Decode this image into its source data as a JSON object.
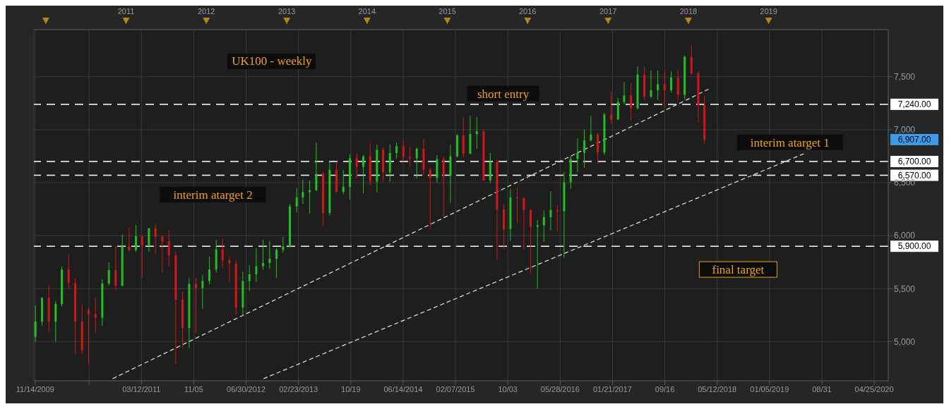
{
  "chart_data": {
    "type": "candlestick",
    "title": "UK100 - weekly",
    "annotations": [
      "short entry",
      "interim atarget 2",
      "interim atarget 1",
      "final target",
      "6,907.00"
    ],
    "x": [
      "2009-11-15",
      "2009-12-15",
      "2010-01-15",
      "2010-02-15",
      "2010-03-15",
      "2010-04-15",
      "2010-05-15",
      "2010-06-15",
      "2010-07-15",
      "2010-08-15",
      "2010-09-15",
      "2010-10-15",
      "2010-11-15",
      "2010-12-15",
      "2011-01-15",
      "2011-02-15",
      "2011-03-15",
      "2011-04-15",
      "2011-05-15",
      "2011-06-15",
      "2011-07-15",
      "2011-08-15",
      "2011-09-15",
      "2011-10-15",
      "2011-11-15",
      "2011-12-15",
      "2012-01-15",
      "2012-02-15",
      "2012-03-15",
      "2012-04-15",
      "2012-05-15",
      "2012-06-15",
      "2012-07-15",
      "2012-08-15",
      "2012-09-15",
      "2012-10-15",
      "2012-11-15",
      "2012-12-15",
      "2013-01-15",
      "2013-02-15",
      "2013-03-15",
      "2013-04-15",
      "2013-05-15",
      "2013-06-15",
      "2013-07-15",
      "2013-08-15",
      "2013-09-15",
      "2013-10-15",
      "2013-11-15",
      "2013-12-15",
      "2014-01-15",
      "2014-02-15",
      "2014-03-15",
      "2014-04-15",
      "2014-05-15",
      "2014-06-15",
      "2014-07-15",
      "2014-08-15",
      "2014-09-15",
      "2014-10-15",
      "2014-11-15",
      "2014-12-15",
      "2015-01-15",
      "2015-02-15",
      "2015-03-15",
      "2015-04-15",
      "2015-05-15",
      "2015-06-15",
      "2015-07-15",
      "2015-08-15",
      "2015-09-15",
      "2015-10-15",
      "2015-11-15",
      "2015-12-15",
      "2016-01-15",
      "2016-02-15",
      "2016-03-15",
      "2016-04-15",
      "2016-05-15",
      "2016-06-15",
      "2016-07-15",
      "2016-08-15",
      "2016-09-15",
      "2016-10-15",
      "2016-11-15",
      "2016-12-15",
      "2017-01-15",
      "2017-02-15",
      "2017-03-15",
      "2017-04-15",
      "2017-05-15",
      "2017-06-15",
      "2017-07-15",
      "2017-08-15",
      "2017-09-15",
      "2017-10-15",
      "2017-11-15",
      "2017-12-15",
      "2018-01-15",
      "2018-02-15",
      "2018-03-15"
    ],
    "ohlc": [
      [
        5045,
        5340,
        5000,
        5190
      ],
      [
        5190,
        5420,
        5150,
        5413
      ],
      [
        5413,
        5530,
        5090,
        5189
      ],
      [
        5189,
        5380,
        5000,
        5355
      ],
      [
        5355,
        5710,
        5330,
        5680
      ],
      [
        5680,
        5830,
        5500,
        5553
      ],
      [
        5553,
        5600,
        4880,
        5188
      ],
      [
        5188,
        5350,
        4880,
        4917
      ],
      [
        5300,
        5320,
        4790,
        5258
      ],
      [
        5258,
        5410,
        5080,
        5225
      ],
      [
        5225,
        5590,
        5150,
        5549
      ],
      [
        5549,
        5750,
        5530,
        5675
      ],
      [
        5675,
        5900,
        5480,
        5528
      ],
      [
        5528,
        6010,
        5520,
        5900
      ],
      [
        5900,
        6080,
        5850,
        5863
      ],
      [
        5863,
        6100,
        5850,
        5994
      ],
      [
        5994,
        6000,
        5600,
        5909
      ],
      [
        5909,
        6070,
        5850,
        6070
      ],
      [
        6070,
        6100,
        5830,
        5990
      ],
      [
        5990,
        6000,
        5650,
        5946
      ],
      [
        5946,
        6050,
        5710,
        5815
      ],
      [
        5815,
        5850,
        4790,
        5395
      ],
      [
        5395,
        5470,
        4940,
        5128
      ],
      [
        5128,
        5600,
        4940,
        5544
      ],
      [
        5544,
        5600,
        5080,
        5505
      ],
      [
        5505,
        5630,
        5310,
        5572
      ],
      [
        5572,
        5800,
        5540,
        5681
      ],
      [
        5681,
        5960,
        5650,
        5871
      ],
      [
        5871,
        5970,
        5690,
        5768
      ],
      [
        5768,
        5800,
        5560,
        5737
      ],
      [
        5737,
        5770,
        5250,
        5321
      ],
      [
        5321,
        5660,
        5240,
        5571
      ],
      [
        5571,
        5720,
        5480,
        5635
      ],
      [
        5635,
        5880,
        5560,
        5711
      ],
      [
        5711,
        5960,
        5680,
        5742
      ],
      [
        5742,
        5950,
        5690,
        5782
      ],
      [
        5782,
        5880,
        5600,
        5866
      ],
      [
        5866,
        5990,
        5840,
        5897
      ],
      [
        5897,
        6300,
        5890,
        6276
      ],
      [
        6276,
        6450,
        6220,
        6360
      ],
      [
        6360,
        6530,
        6300,
        6412
      ],
      [
        6412,
        6520,
        6210,
        6430
      ],
      [
        6430,
        6880,
        6420,
        6583
      ],
      [
        6583,
        6600,
        6090,
        6215
      ],
      [
        6215,
        6700,
        6190,
        6621
      ],
      [
        6621,
        6700,
        6410,
        6413
      ],
      [
        6413,
        6620,
        6390,
        6462
      ],
      [
        6462,
        6770,
        6340,
        6731
      ],
      [
        6731,
        6780,
        6540,
        6650
      ],
      [
        6650,
        6760,
        6400,
        6749
      ],
      [
        6749,
        6870,
        6480,
        6510
      ],
      [
        6510,
        6860,
        6410,
        6810
      ],
      [
        6810,
        6830,
        6510,
        6598
      ],
      [
        6598,
        6860,
        6510,
        6780
      ],
      [
        6780,
        6880,
        6730,
        6844
      ],
      [
        6844,
        6900,
        6700,
        6744
      ],
      [
        6744,
        6840,
        6650,
        6730
      ],
      [
        6730,
        6830,
        6540,
        6820
      ],
      [
        6820,
        6910,
        6570,
        6623
      ],
      [
        6623,
        6640,
        6070,
        6546
      ],
      [
        6546,
        6760,
        6500,
        6722
      ],
      [
        6722,
        6740,
        6180,
        6566
      ],
      [
        6566,
        6860,
        6310,
        6749
      ],
      [
        6749,
        6960,
        6740,
        6946
      ],
      [
        6946,
        7120,
        6740,
        6773
      ],
      [
        6773,
        7130,
        6770,
        6960
      ],
      [
        6960,
        7120,
        6820,
        6984
      ],
      [
        6984,
        7000,
        6520,
        6521
      ],
      [
        6521,
        6780,
        6500,
        6696
      ],
      [
        6696,
        6720,
        5770,
        6248
      ],
      [
        6248,
        6300,
        5870,
        6062
      ],
      [
        6062,
        6440,
        5950,
        6361
      ],
      [
        6361,
        6450,
        6120,
        6356
      ],
      [
        6356,
        6360,
        5870,
        6242
      ],
      [
        6242,
        6250,
        5640,
        6084
      ],
      [
        6084,
        6150,
        5500,
        6097
      ],
      [
        6097,
        6240,
        5940,
        6175
      ],
      [
        6175,
        6420,
        6050,
        6242
      ],
      [
        6242,
        6290,
        6040,
        6231
      ],
      [
        6231,
        6600,
        5790,
        6504
      ],
      [
        6504,
        6750,
        6440,
        6724
      ],
      [
        6724,
        6920,
        6600,
        6782
      ],
      [
        6782,
        7000,
        6640,
        6899
      ],
      [
        6899,
        7130,
        6890,
        6954
      ],
      [
        6954,
        6970,
        6680,
        6784
      ],
      [
        6784,
        7160,
        6760,
        7143
      ],
      [
        7143,
        7360,
        7060,
        7099
      ],
      [
        7099,
        7300,
        7090,
        7263
      ],
      [
        7263,
        7450,
        7240,
        7323
      ],
      [
        7323,
        7440,
        7090,
        7204
      ],
      [
        7204,
        7600,
        7190,
        7520
      ],
      [
        7520,
        7600,
        7280,
        7313
      ],
      [
        7313,
        7560,
        7300,
        7372
      ],
      [
        7372,
        7560,
        7280,
        7430
      ],
      [
        7430,
        7550,
        7210,
        7373
      ],
      [
        7373,
        7550,
        7350,
        7493
      ],
      [
        7493,
        7560,
        7280,
        7327
      ],
      [
        7327,
        7700,
        7290,
        7688
      ],
      [
        7688,
        7800,
        7520,
        7533
      ],
      [
        7533,
        7550,
        7070,
        7232
      ],
      [
        7232,
        7320,
        6870,
        6907
      ]
    ],
    "colors": [
      "#22c022",
      "#22c022",
      "#d01818",
      "#22c022",
      "#22c022",
      "#d01818",
      "#d01818",
      "#d01818",
      "#d01818",
      "#d01818",
      "#22c022",
      "#22c022",
      "#d01818",
      "#22c022",
      "#d01818",
      "#22c022",
      "#d01818",
      "#22c022",
      "#d01818",
      "#d01818",
      "#d01818",
      "#d01818",
      "#d01818",
      "#22c022",
      "#d01818",
      "#22c022",
      "#22c022",
      "#22c022",
      "#d01818",
      "#d01818",
      "#d01818",
      "#22c022",
      "#22c022",
      "#22c022",
      "#22c022",
      "#22c022",
      "#22c022",
      "#22c022",
      "#22c022",
      "#22c022",
      "#22c022",
      "#22c022",
      "#22c022",
      "#d01818",
      "#22c022",
      "#d01818",
      "#22c022",
      "#22c022",
      "#d01818",
      "#22c022",
      "#d01818",
      "#22c022",
      "#d01818",
      "#22c022",
      "#22c022",
      "#d01818",
      "#d01818",
      "#22c022",
      "#d01818",
      "#d01818",
      "#22c022",
      "#d01818",
      "#22c022",
      "#22c022",
      "#d01818",
      "#22c022",
      "#22c022",
      "#d01818",
      "#22c022",
      "#d01818",
      "#d01818",
      "#22c022",
      "#d01818",
      "#d01818",
      "#d01818",
      "#22c022",
      "#22c022",
      "#22c022",
      "#d01818",
      "#22c022",
      "#22c022",
      "#22c022",
      "#22c022",
      "#22c022",
      "#d01818",
      "#22c022",
      "#d01818",
      "#22c022",
      "#22c022",
      "#d01818",
      "#22c022",
      "#d01818",
      "#22c022",
      "#22c022",
      "#d01818",
      "#22c022",
      "#d01818",
      "#22c022",
      "#d01818",
      "#d01818",
      "#d01818"
    ],
    "series": [
      {
        "type": "line",
        "x": [
          "2010-11-01",
          "2018-04-03"
        ],
        "values": [
          4650,
          7383
        ],
        "color": "#d8f0d0",
        "line_style": "dashed"
      },
      {
        "type": "line",
        "x": [
          "2012-09-17",
          "2019-06-10"
        ],
        "values": [
          4650,
          6773
        ],
        "color": "#d8f0d0",
        "line_style": "dashed"
      }
    ],
    "xlim": [
      "2009-11-08",
      "2020-06-28"
    ],
    "xticks": [
      {
        "value": "2009-11-14",
        "label": "11/14/2009"
      },
      {
        "value": "2010-07-17",
        "label": null
      },
      {
        "value": "2011-03-12",
        "label": "03/12/2011"
      },
      {
        "value": "2011-11-05",
        "label": "11/05"
      },
      {
        "value": "2012-06-30",
        "label": "06/30/2012"
      },
      {
        "value": "2013-02-23",
        "label": "02/23/2013"
      },
      {
        "value": "2013-10-19",
        "label": "10/19"
      },
      {
        "value": "2014-06-14",
        "label": "06/14/2014"
      },
      {
        "value": "2015-02-07",
        "label": "02/07/2015"
      },
      {
        "value": "2015-10-03",
        "label": "10/03"
      },
      {
        "value": "2016-05-28",
        "label": "05/28/2016"
      },
      {
        "value": "2017-01-21",
        "label": "01/21/2017"
      },
      {
        "value": "2017-09-16",
        "label": "09/16"
      },
      {
        "value": "2018-05-12",
        "label": "05/12/2018"
      },
      {
        "value": "2019-01-05",
        "label": "01/05/2019"
      },
      {
        "value": "2019-08-31",
        "label": "08/31"
      },
      {
        "value": "2020-04-25",
        "label": "04/25/2020"
      }
    ],
    "x2lim": [
      "2009-11-08",
      "2020-06-28"
    ],
    "x2ticks": [
      {
        "value": "2010-01-01",
        "label": null
      },
      {
        "value": "2011-01-01",
        "label": "2011"
      },
      {
        "value": "2012-01-01",
        "label": "2012"
      },
      {
        "value": "2013-01-01",
        "label": "2013"
      },
      {
        "value": "2014-01-01",
        "label": "2014"
      },
      {
        "value": "2015-01-01",
        "label": "2015"
      },
      {
        "value": "2016-01-01",
        "label": "2016"
      },
      {
        "value": "2017-01-01",
        "label": "2017"
      },
      {
        "value": "2018-01-01",
        "label": "2018"
      },
      {
        "value": "2019-01-01",
        "label": "2019"
      }
    ],
    "ylim": [
      4630,
      7945
    ],
    "yticks": [
      {
        "value": 5000,
        "label": "5,000"
      },
      {
        "value": 5500,
        "label": "5,500"
      },
      {
        "value": 6000,
        "label": "6,000"
      },
      {
        "value": 6500,
        "label": "6,500"
      },
      {
        "value": 7000,
        "label": "7,000"
      },
      {
        "value": 7500,
        "label": "7,500"
      }
    ],
    "ref_lines": [
      {
        "axis": "y",
        "value": 7240,
        "label": "7,240.00",
        "color": "#ffffff",
        "line_style": "dashed"
      },
      {
        "axis": "y",
        "value": 6700,
        "label": "6,700.00",
        "color": "#ffffff",
        "line_style": "dashed"
      },
      {
        "axis": "y",
        "value": 6570,
        "label": "6,570.00",
        "color": "#ffffff",
        "line_style": "dashed"
      },
      {
        "axis": "y",
        "value": 5900,
        "label": "5,900.00",
        "color": "#ffffff",
        "line_style": "dashed"
      }
    ],
    "grid": true
  }
}
